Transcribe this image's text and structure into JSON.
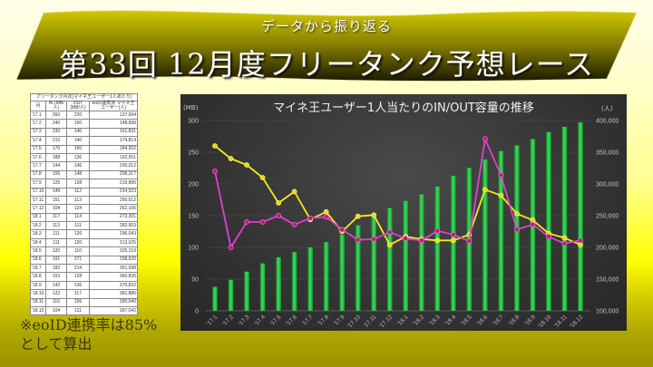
{
  "banner": {
    "subtitle": "データから振り返る",
    "title": "第33回 12月度フリータンク予想レース"
  },
  "table": {
    "title": "フリータンク月次(マイネ王ユーザー1人あたり)",
    "headers": [
      "月",
      "IN (MB/人)",
      "OUT (MB/人)",
      "eoID連携済 マイネ王ユーザー(人)"
    ],
    "rows": [
      [
        "'17.1",
        "260",
        "220",
        "137,694"
      ],
      [
        "'17.2",
        "240",
        "100",
        "148,898"
      ],
      [
        "'17.3",
        "230",
        "140",
        "161,831"
      ],
      [
        "'17.4",
        "210",
        "140",
        "174,814"
      ],
      [
        "'17.5",
        "170",
        "150",
        "184,502"
      ],
      [
        "'17.6",
        "188",
        "136",
        "192,551"
      ],
      [
        "'17.7",
        "144",
        "146",
        "200,012"
      ],
      [
        "'17.8",
        "156",
        "148",
        "208,317"
      ],
      [
        "'17.9",
        "125",
        "128",
        "219,895"
      ],
      [
        "'17.10",
        "149",
        "112",
        "234,923"
      ],
      [
        "'17.11",
        "151",
        "113",
        "250,612"
      ],
      [
        "'17.12",
        "104",
        "124",
        "262,106"
      ],
      [
        "'18.1",
        "117",
        "114",
        "273,301"
      ],
      [
        "'18.2",
        "113",
        "111",
        "283,503"
      ],
      [
        "'18.3",
        "111",
        "126",
        "296,043"
      ],
      [
        "'18.4",
        "111",
        "120",
        "313,025"
      ],
      [
        "'18.5",
        "120",
        "110",
        "325,219"
      ],
      [
        "'18.6",
        "191",
        "271",
        "338,620"
      ],
      [
        "'18.7",
        "182",
        "214",
        "351,998"
      ],
      [
        "'18.8",
        "153",
        "128",
        "360,826"
      ],
      [
        "'18.9",
        "143",
        "136",
        "370,832"
      ],
      [
        "'18.10",
        "122",
        "117",
        "381,886"
      ],
      [
        "'18.11",
        "115",
        "106",
        "390,040"
      ],
      [
        "'18.12",
        "104",
        "111",
        "397,042"
      ]
    ]
  },
  "note": {
    "line1": "※eoID連携率は85%",
    "line2": "として算出"
  },
  "chart": {
    "title": "マイネ王ユーザー1人当たりのIN/OUT容量の推移",
    "unit_left": "(MB)",
    "unit_right": "(人)"
  },
  "chart_data": {
    "type": "bar+line",
    "title": "マイネ王ユーザー1人当たりのIN/OUT容量の推移",
    "categories": [
      "'17.1",
      "'17.2",
      "'17.3",
      "'17.4",
      "'17.5",
      "'17.6",
      "'17.7",
      "'17.8",
      "'17.9",
      "'17.10",
      "'17.11",
      "'17.12",
      "'18.1",
      "'18.2",
      "'18.3",
      "'18.4",
      "'18.5",
      "'18.6",
      "'18.7",
      "'18.8",
      "'18.9",
      "'18.10",
      "'18.11",
      "'18.12"
    ],
    "series": [
      {
        "name": "eoID連携済マイネ王ユーザー(人)",
        "type": "bar",
        "axis": "right",
        "color": "#1fb83c",
        "values": [
          137694,
          148898,
          161831,
          174814,
          184502,
          192551,
          200012,
          208317,
          219895,
          234923,
          250612,
          262106,
          273301,
          283503,
          296043,
          313025,
          325219,
          338620,
          351998,
          360826,
          370832,
          381886,
          390040,
          397042
        ]
      },
      {
        "name": "IN (MB/人)",
        "type": "line",
        "axis": "left",
        "color": "#f2ea1c",
        "values": [
          260,
          240,
          230,
          210,
          170,
          188,
          144,
          156,
          125,
          149,
          151,
          104,
          117,
          113,
          111,
          111,
          120,
          191,
          182,
          153,
          143,
          122,
          115,
          104
        ]
      },
      {
        "name": "OUT (MB/人)",
        "type": "line",
        "axis": "left",
        "color": "#e040d0",
        "values": [
          220,
          100,
          140,
          140,
          150,
          136,
          146,
          148,
          128,
          112,
          113,
          124,
          114,
          111,
          126,
          120,
          110,
          271,
          214,
          128,
          136,
          117,
          106,
          111
        ]
      }
    ],
    "ylabel": "(MB)",
    "y2label": "(人)",
    "ylim": [
      0,
      300
    ],
    "yticks": [
      0,
      50,
      100,
      150,
      200,
      250,
      300
    ],
    "y2lim": [
      100000,
      400000
    ],
    "y2ticks": [
      "100,000",
      "150,000",
      "200,000",
      "250,000",
      "300,000",
      "350,000",
      "400,000"
    ],
    "grid": true,
    "legend": "none"
  }
}
